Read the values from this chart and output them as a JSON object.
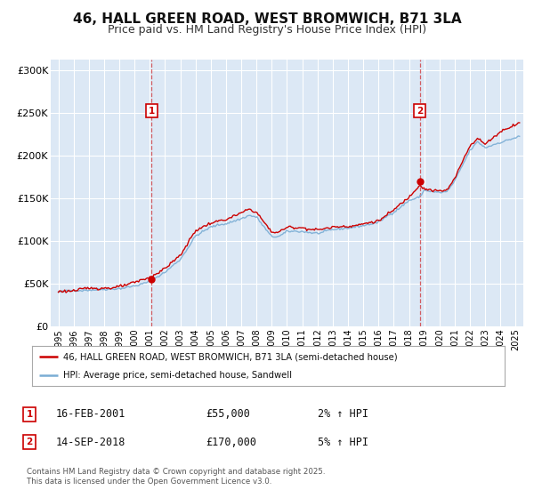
{
  "title": "46, HALL GREEN ROAD, WEST BROMWICH, B71 3LA",
  "subtitle": "Price paid vs. HM Land Registry's House Price Index (HPI)",
  "title_fontsize": 11,
  "subtitle_fontsize": 9,
  "background_color": "#ffffff",
  "plot_bg_color": "#dce8f5",
  "grid_color": "#ffffff",
  "hpi_color": "#7aadd4",
  "price_color": "#cc0000",
  "marker_color": "#cc0000",
  "vline_color": "#cc0000",
  "yticks": [
    0,
    50000,
    100000,
    150000,
    200000,
    250000,
    300000
  ],
  "ytick_labels": [
    "£0",
    "£50K",
    "£100K",
    "£150K",
    "£200K",
    "£250K",
    "£300K"
  ],
  "xmin": 1994.5,
  "xmax": 2025.5,
  "ymin": 0,
  "ymax": 312000,
  "sale1_x": 2001.12,
  "sale1_y": 55000,
  "sale1_label": "1",
  "sale1_date": "16-FEB-2001",
  "sale1_price": "£55,000",
  "sale1_hpi": "2% ↑ HPI",
  "sale2_x": 2018.71,
  "sale2_y": 170000,
  "sale2_label": "2",
  "sale2_date": "14-SEP-2018",
  "sale2_price": "£170,000",
  "sale2_hpi": "5% ↑ HPI",
  "legend_line1": "46, HALL GREEN ROAD, WEST BROMWICH, B71 3LA (semi-detached house)",
  "legend_line2": "HPI: Average price, semi-detached house, Sandwell",
  "footnote": "Contains HM Land Registry data © Crown copyright and database right 2025.\nThis data is licensed under the Open Government Licence v3.0.",
  "xticks": [
    1995,
    1996,
    1997,
    1998,
    1999,
    2000,
    2001,
    2002,
    2003,
    2004,
    2005,
    2006,
    2007,
    2008,
    2009,
    2010,
    2011,
    2012,
    2013,
    2014,
    2015,
    2016,
    2017,
    2018,
    2019,
    2020,
    2021,
    2022,
    2023,
    2024,
    2025
  ]
}
